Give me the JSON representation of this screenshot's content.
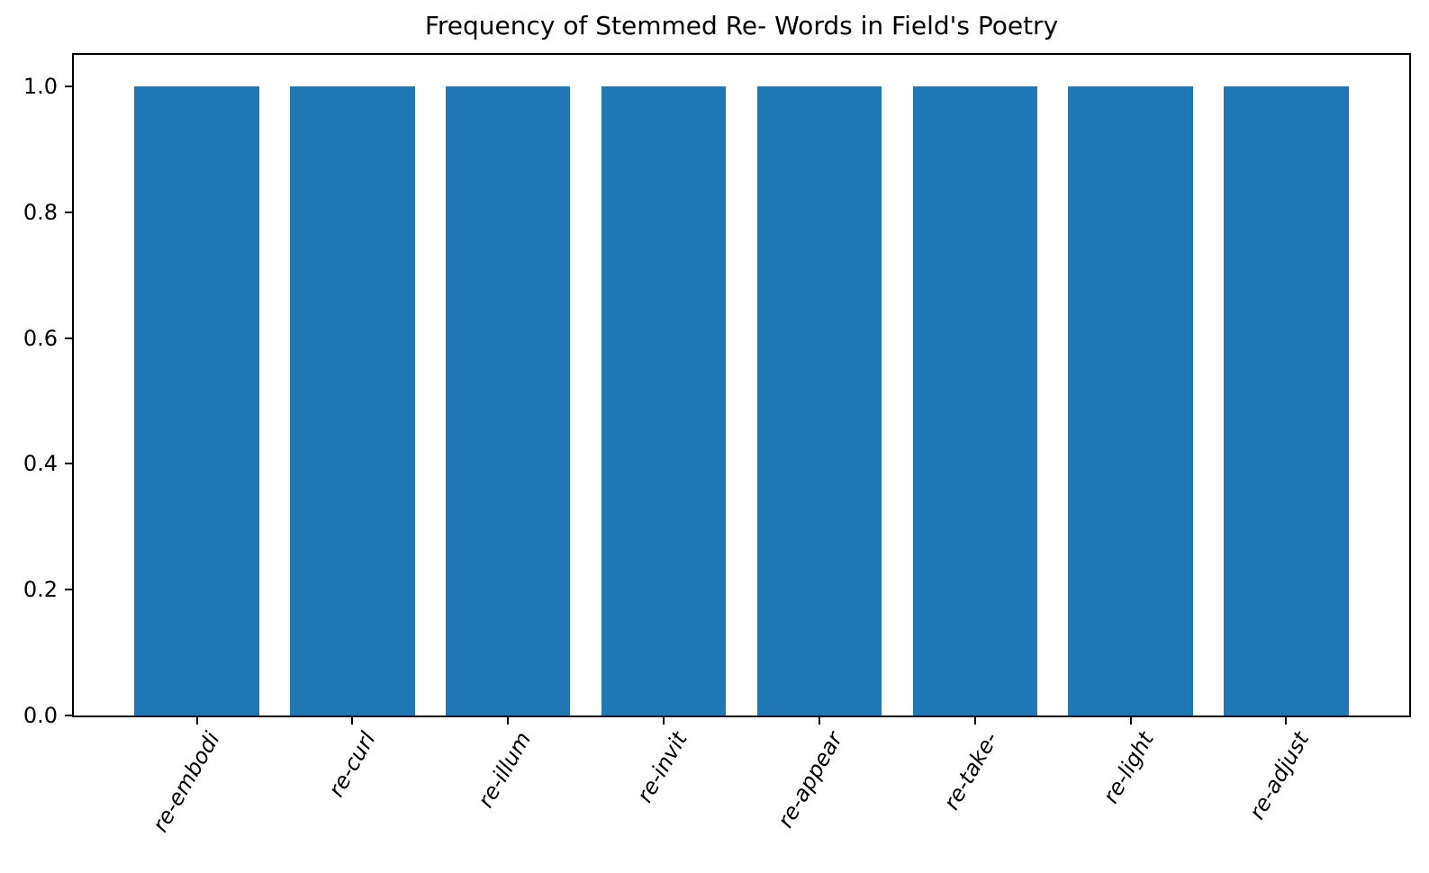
{
  "chart_data": {
    "type": "bar",
    "title": "Frequency of Stemmed Re- Words in Field's Poetry",
    "categories": [
      "re-embodi",
      "re-curl",
      "re-illum",
      "re-invit",
      "re-appear",
      "re-take-",
      "re-light",
      "re-adjust"
    ],
    "values": [
      1.0,
      1.0,
      1.0,
      1.0,
      1.0,
      1.0,
      1.0,
      1.0
    ],
    "xlabel": "",
    "ylabel": "",
    "ylim": [
      0,
      1.05
    ],
    "xlim": [
      -0.79,
      7.79
    ],
    "yticks": [
      0.0,
      0.2,
      0.4,
      0.6,
      0.8,
      1.0
    ],
    "ytick_labels": [
      "0.0",
      "0.2",
      "0.4",
      "0.6",
      "0.8",
      "1.0"
    ],
    "bar_color": "#1f77b4",
    "bar_width": 0.8,
    "xtick_rotation": 60,
    "xtick_style": "italic",
    "grid": false,
    "legend_position": "none"
  }
}
